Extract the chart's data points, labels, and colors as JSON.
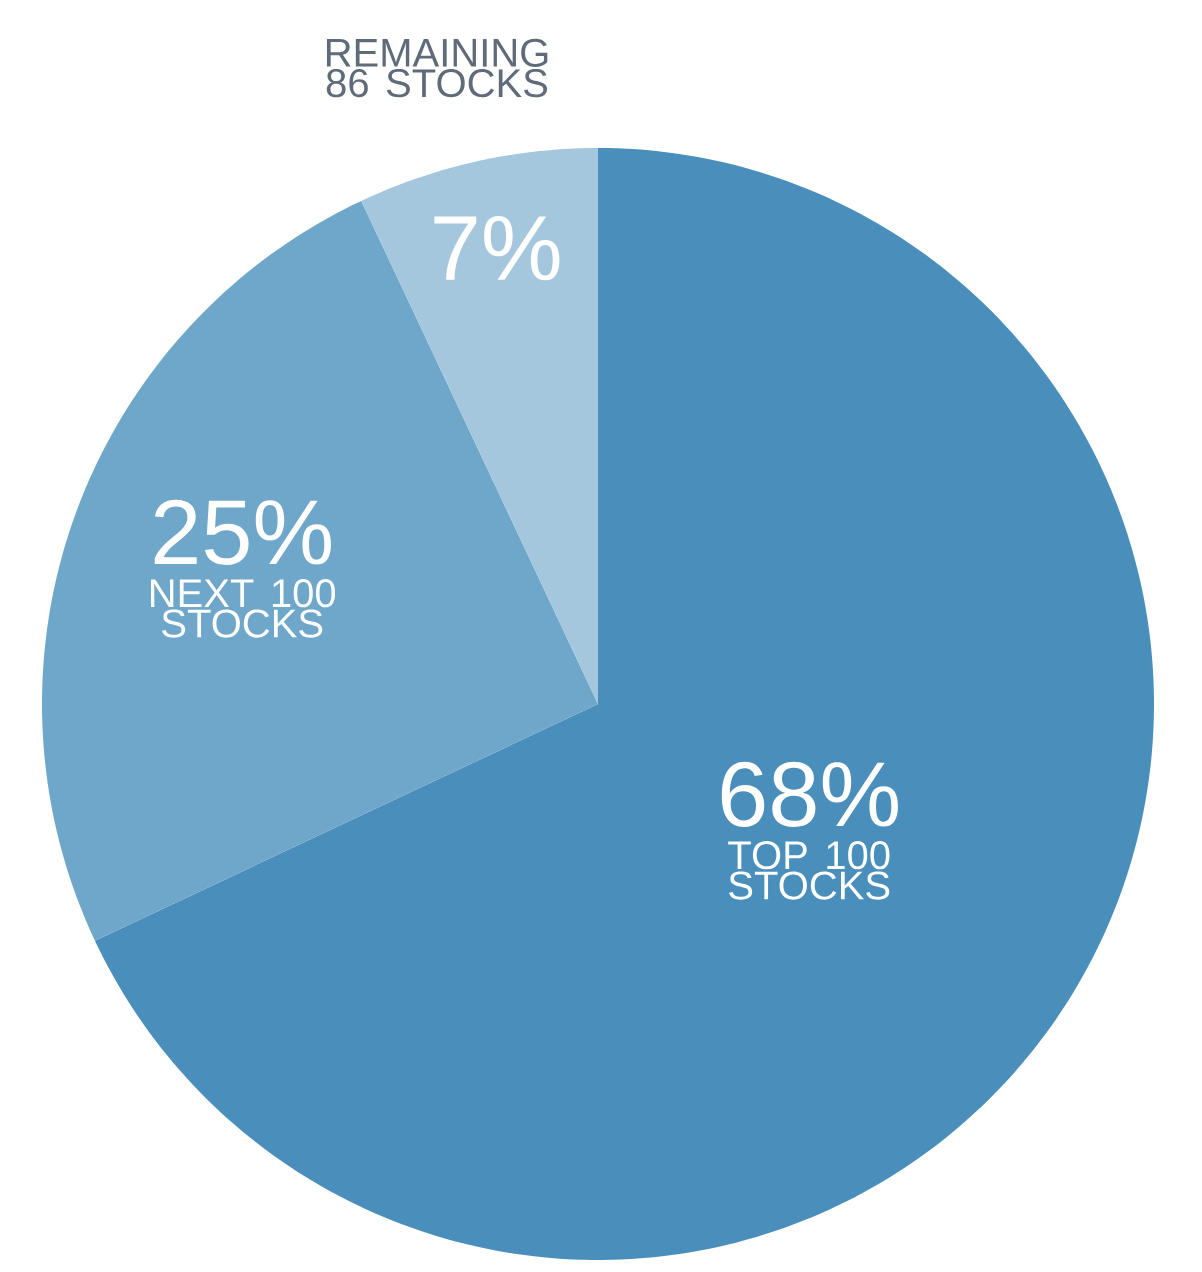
{
  "chart_data": {
    "type": "pie",
    "categories": [
      "TOP 100 STOCKS",
      "NEXT 100 STOCKS",
      "REMAINING 86 STOCKS"
    ],
    "values": [
      68,
      25,
      7
    ],
    "colors": [
      "#4a8fbb",
      "#6ea7ca",
      "#a5c7de"
    ],
    "value_labels": [
      "68%",
      "25%",
      "7%"
    ]
  }
}
